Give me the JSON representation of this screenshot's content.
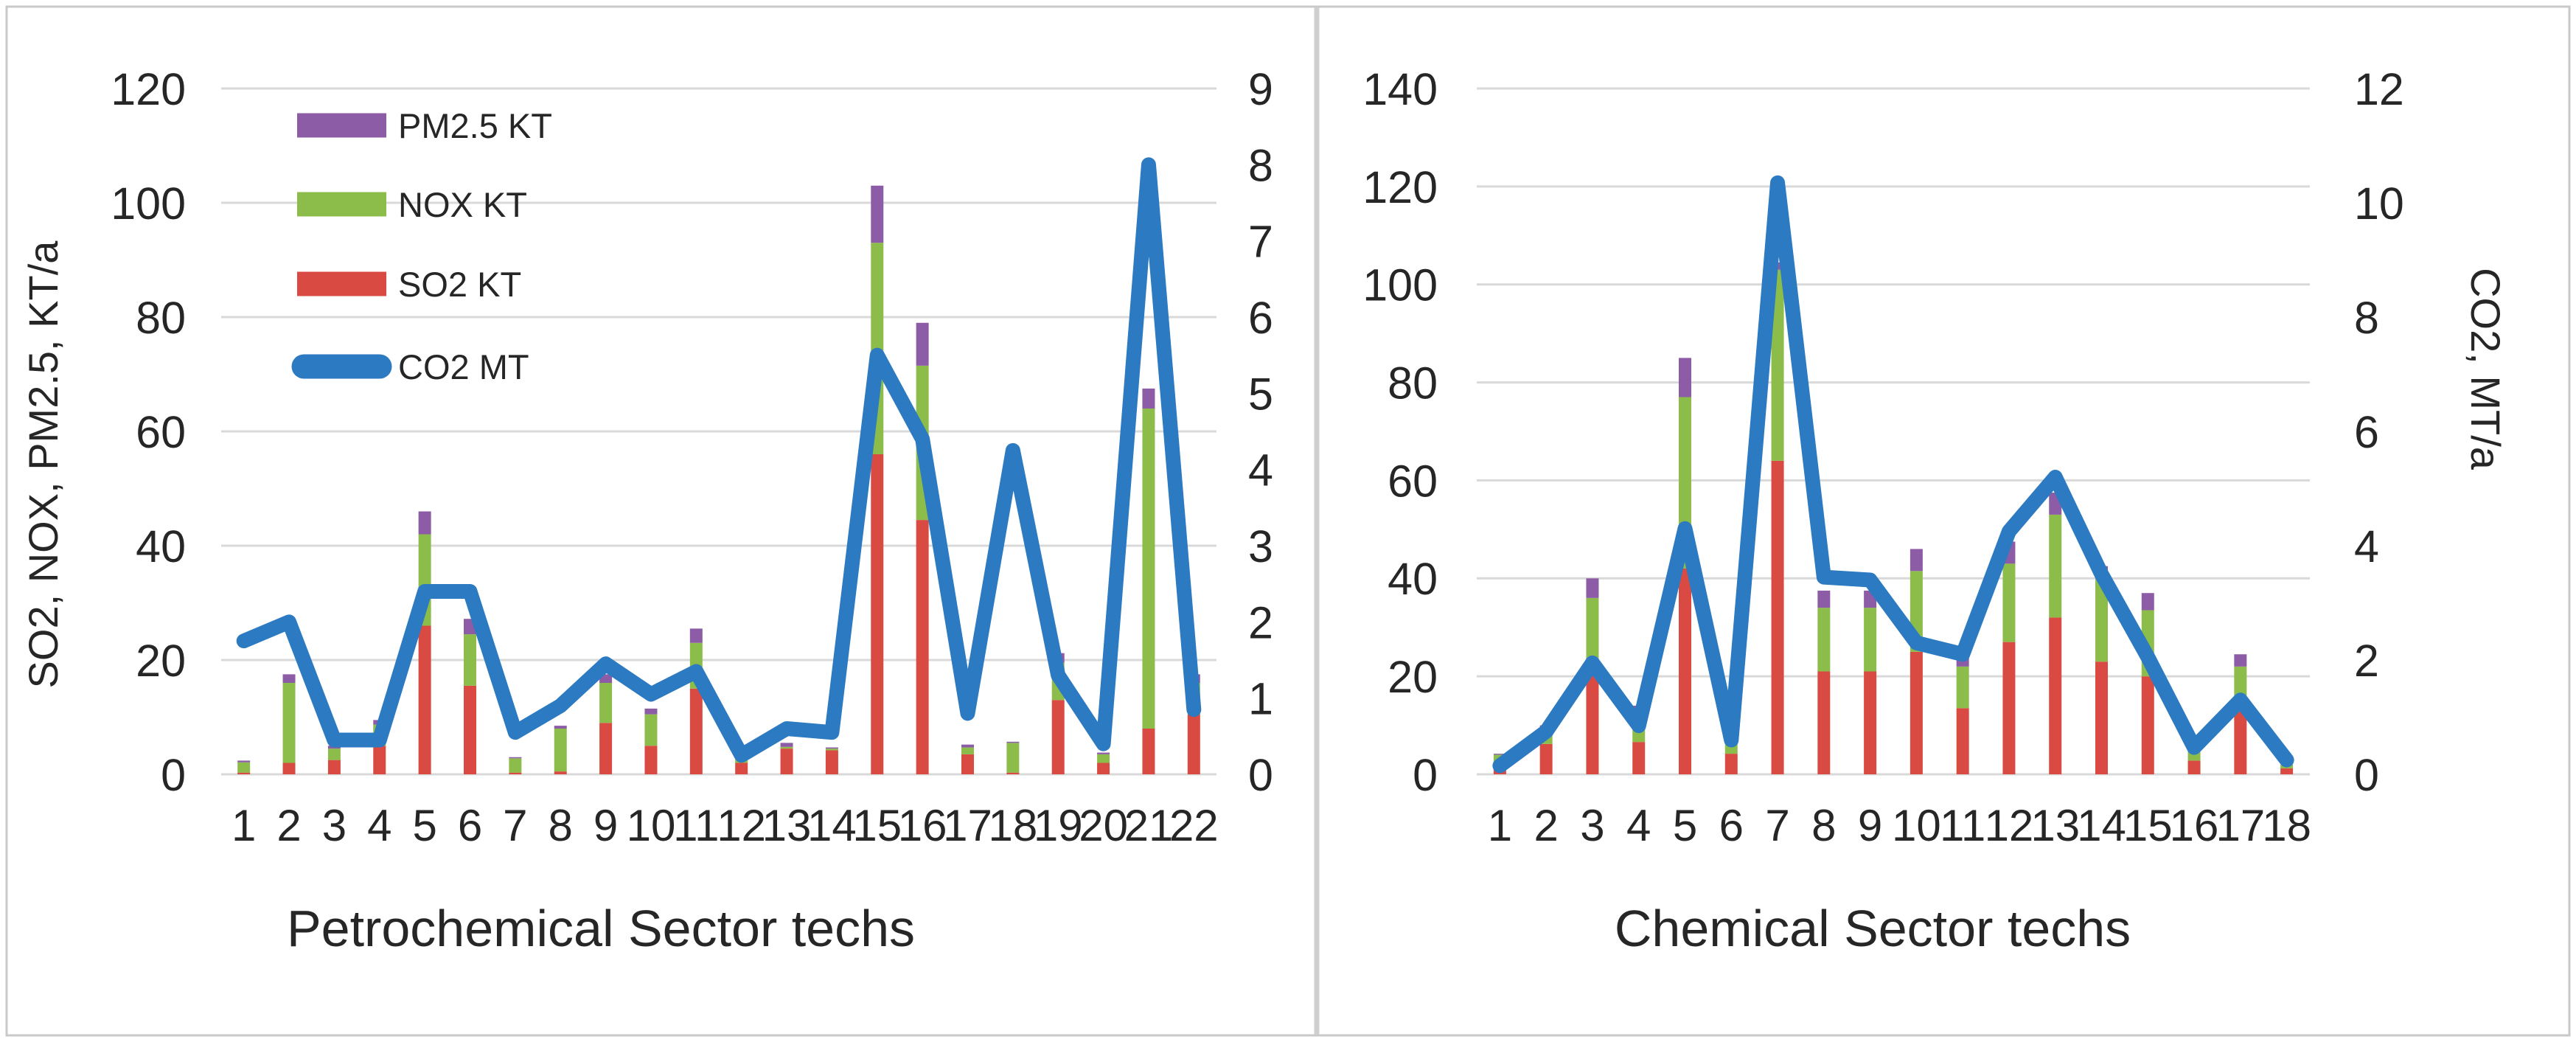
{
  "figure": {
    "background": "#ffffff",
    "border_color": "#c9c9c9",
    "divider_color": "#cfcfcf"
  },
  "colors": {
    "so2": "#d94a42",
    "nox": "#8cbd4a",
    "pm25": "#8d5ca6",
    "co2": "#2b7ac2",
    "gridline": "#d9d9d9",
    "text": "#262626"
  },
  "legend": {
    "items": [
      {
        "key": "pm25",
        "label": "PM2.5 KT",
        "swatch": "box"
      },
      {
        "key": "nox",
        "label": "NOX KT",
        "swatch": "box"
      },
      {
        "key": "so2",
        "label": "SO2 KT",
        "swatch": "box"
      },
      {
        "key": "co2",
        "label": "CO2 MT",
        "swatch": "line"
      }
    ]
  },
  "chart_data": [
    {
      "type": "bar+line",
      "title": "",
      "xlabel": "Petrochemical Sector techs",
      "ylabel_left": "SO2, NOX, PM2.5, KT/a",
      "ylabel_right": "",
      "legend": true,
      "grid": true,
      "x_ticks": [
        1,
        2,
        3,
        4,
        5,
        6,
        7,
        8,
        9,
        10,
        11,
        12,
        13,
        14,
        15,
        16,
        17,
        18,
        19,
        20,
        21,
        22
      ],
      "y_left_ticks": [
        0,
        20,
        40,
        60,
        80,
        100,
        120
      ],
      "y_left_range": [
        0,
        120
      ],
      "y_right_ticks": [
        0,
        1,
        2,
        3,
        4,
        5,
        6,
        7,
        8,
        9
      ],
      "y_right_range": [
        0,
        9
      ],
      "series": [
        {
          "key": "so2",
          "name": "SO2 KT",
          "kind": "bar",
          "axis": "left",
          "values": [
            0.3,
            2,
            2.5,
            5,
            26,
            15.5,
            0.3,
            0.5,
            9,
            5,
            15,
            2,
            4.5,
            4.2,
            56,
            44.5,
            3.5,
            0.3,
            13,
            2,
            8,
            10.5
          ]
        },
        {
          "key": "nox",
          "name": "NOX KT",
          "kind": "bar",
          "axis": "left",
          "values": [
            1.8,
            14,
            2,
            3.7,
            16,
            9,
            2.5,
            7.5,
            7,
            5.5,
            8,
            1,
            0.3,
            0.3,
            37,
            27,
            1.2,
            5.2,
            6.5,
            1.5,
            56,
            5.5
          ]
        },
        {
          "key": "pm25",
          "name": "PM2.5 KT",
          "kind": "bar",
          "axis": "left",
          "values": [
            0.3,
            1.5,
            0.5,
            0.8,
            4,
            2.7,
            0.2,
            0.5,
            1.5,
            1,
            2.5,
            0.2,
            0.7,
            0.2,
            10,
            7.5,
            0.5,
            0.2,
            1.7,
            0.3,
            3.5,
            1.5
          ]
        },
        {
          "key": "co2",
          "name": "CO2 MT",
          "kind": "line",
          "axis": "right",
          "values": [
            1.75,
            2.0,
            0.45,
            0.45,
            2.4,
            2.4,
            0.55,
            0.9,
            1.45,
            1.05,
            1.35,
            0.25,
            0.6,
            0.55,
            5.5,
            4.4,
            0.8,
            4.25,
            1.3,
            0.4,
            8.0,
            0.85
          ]
        }
      ]
    },
    {
      "type": "bar+line",
      "title": "",
      "xlabel": "Chemical Sector techs",
      "ylabel_left": "",
      "ylabel_right": "CO2, MT/a",
      "legend": false,
      "grid": true,
      "x_ticks": [
        1,
        2,
        3,
        4,
        5,
        6,
        7,
        8,
        9,
        10,
        11,
        12,
        13,
        14,
        15,
        16,
        17,
        18
      ],
      "y_left_ticks": [
        0,
        20,
        40,
        60,
        80,
        100,
        120,
        140
      ],
      "y_left_range": [
        0,
        140
      ],
      "y_right_ticks": [
        0,
        2,
        4,
        6,
        8,
        10,
        12
      ],
      "y_right_range": [
        0,
        12
      ],
      "series": [
        {
          "key": "so2",
          "name": "SO2 KT",
          "kind": "bar",
          "axis": "left",
          "values": [
            2.2,
            6.2,
            20.5,
            6.6,
            42,
            4.2,
            64,
            21,
            21,
            25,
            13.5,
            27,
            32,
            23,
            20,
            2.8,
            13,
            1.2
          ]
        },
        {
          "key": "nox",
          "name": "NOX KT",
          "kind": "bar",
          "axis": "left",
          "values": [
            1.8,
            3.4,
            15.5,
            6.7,
            35,
            3.7,
            39,
            13,
            13,
            16.5,
            8.5,
            16,
            21,
            17.5,
            13.5,
            2.7,
            9,
            0.8
          ]
        },
        {
          "key": "pm25",
          "name": "PM2.5 KT",
          "kind": "bar",
          "axis": "left",
          "values": [
            0.2,
            0.4,
            4,
            0.7,
            8,
            0.7,
            1.5,
            3.5,
            3.5,
            4.5,
            2.5,
            4.5,
            4.5,
            2,
            3.5,
            0,
            2.5,
            0
          ]
        },
        {
          "key": "co2",
          "name": "CO2 MT",
          "kind": "line",
          "axis": "right",
          "values": [
            0.15,
            0.75,
            1.95,
            0.85,
            4.3,
            0.6,
            10.35,
            3.45,
            3.4,
            2.3,
            2.1,
            4.25,
            5.2,
            3.5,
            2.05,
            0.47,
            1.3,
            0.25
          ]
        }
      ]
    }
  ]
}
